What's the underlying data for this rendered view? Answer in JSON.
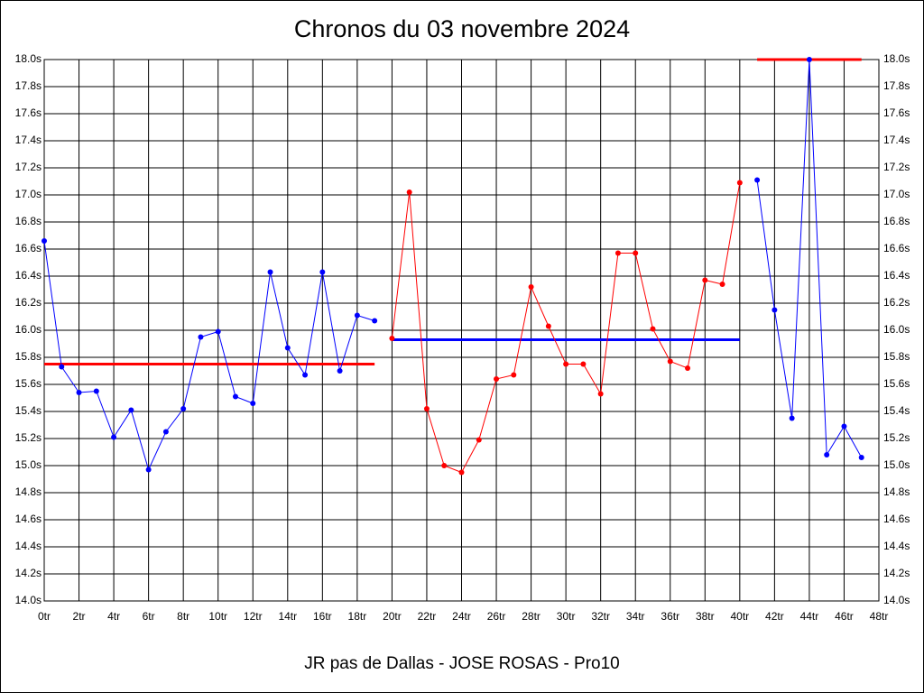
{
  "chart_data": {
    "type": "line",
    "title": "Chronos du 03 novembre 2024",
    "x_label": "JR pas de Dallas - JOSE ROSAS - Pro10",
    "xlim": [
      0,
      48
    ],
    "xticks": [
      {
        "value": 0,
        "label": "0tr"
      },
      {
        "value": 2,
        "label": "2tr"
      },
      {
        "value": 4,
        "label": "4tr"
      },
      {
        "value": 6,
        "label": "6tr"
      },
      {
        "value": 8,
        "label": "8tr"
      },
      {
        "value": 10,
        "label": "10tr"
      },
      {
        "value": 12,
        "label": "12tr"
      },
      {
        "value": 14,
        "label": "14tr"
      },
      {
        "value": 16,
        "label": "16tr"
      },
      {
        "value": 18,
        "label": "18tr"
      },
      {
        "value": 20,
        "label": "20tr"
      },
      {
        "value": 22,
        "label": "22tr"
      },
      {
        "value": 24,
        "label": "24tr"
      },
      {
        "value": 26,
        "label": "26tr"
      },
      {
        "value": 28,
        "label": "28tr"
      },
      {
        "value": 30,
        "label": "30tr"
      },
      {
        "value": 32,
        "label": "32tr"
      },
      {
        "value": 34,
        "label": "34tr"
      },
      {
        "value": 36,
        "label": "36tr"
      },
      {
        "value": 38,
        "label": "38tr"
      },
      {
        "value": 40,
        "label": "40tr"
      },
      {
        "value": 42,
        "label": "42tr"
      },
      {
        "value": 44,
        "label": "44tr"
      },
      {
        "value": 46,
        "label": "46tr"
      },
      {
        "value": 48,
        "label": "48tr"
      }
    ],
    "ylim": [
      14.0,
      18.0
    ],
    "yticks": [
      {
        "value": 14.0,
        "label": "14.0s"
      },
      {
        "value": 14.2,
        "label": "14.2s"
      },
      {
        "value": 14.4,
        "label": "14.4s"
      },
      {
        "value": 14.6,
        "label": "14.6s"
      },
      {
        "value": 14.8,
        "label": "14.8s"
      },
      {
        "value": 15.0,
        "label": "15.0s"
      },
      {
        "value": 15.2,
        "label": "15.2s"
      },
      {
        "value": 15.4,
        "label": "15.4s"
      },
      {
        "value": 15.6,
        "label": "15.6s"
      },
      {
        "value": 15.8,
        "label": "15.8s"
      },
      {
        "value": 16.0,
        "label": "16.0s"
      },
      {
        "value": 16.2,
        "label": "16.2s"
      },
      {
        "value": 16.4,
        "label": "16.4s"
      },
      {
        "value": 16.6,
        "label": "16.6s"
      },
      {
        "value": 16.8,
        "label": "16.8s"
      },
      {
        "value": 17.0,
        "label": "17.0s"
      },
      {
        "value": 17.2,
        "label": "17.2s"
      },
      {
        "value": 17.4,
        "label": "17.4s"
      },
      {
        "value": 17.6,
        "label": "17.6s"
      },
      {
        "value": 17.8,
        "label": "17.8s"
      },
      {
        "value": 18.0,
        "label": "18.0s"
      }
    ],
    "grid": true,
    "right_axis_labels": true,
    "series": [
      {
        "color": "#0000ff",
        "x": [
          0,
          1,
          2,
          3,
          4,
          5,
          6,
          7,
          8,
          9,
          10,
          11,
          12,
          13,
          14,
          15,
          16,
          17,
          18,
          19
        ],
        "values": [
          16.66,
          15.73,
          15.54,
          15.55,
          15.21,
          15.41,
          14.97,
          15.25,
          15.42,
          15.95,
          15.99,
          15.51,
          15.46,
          16.43,
          15.87,
          15.67,
          16.43,
          15.7,
          16.11,
          16.07
        ]
      },
      {
        "color": "#ff0000",
        "x": [
          20,
          21,
          22,
          23,
          24,
          25,
          26,
          27,
          28,
          29,
          30,
          31,
          32,
          33,
          34,
          35,
          36,
          37,
          38,
          39,
          40
        ],
        "values": [
          15.94,
          17.02,
          15.42,
          15.0,
          14.95,
          15.19,
          15.64,
          15.67,
          16.32,
          16.03,
          15.75,
          15.75,
          15.53,
          16.57,
          16.57,
          16.01,
          15.77,
          15.72,
          16.37,
          16.34,
          17.09
        ]
      },
      {
        "color": "#0000ff",
        "x": [
          41,
          42,
          43,
          44,
          45,
          46,
          47
        ],
        "values": [
          17.11,
          16.15,
          15.35,
          18.0,
          15.08,
          15.29,
          15.06
        ]
      }
    ],
    "reference_lines": [
      {
        "color": "#ff0000",
        "x": [
          0,
          19
        ],
        "value": 15.75
      },
      {
        "color": "#0000ff",
        "x": [
          20,
          40
        ],
        "value": 15.93
      },
      {
        "color": "#ff0000",
        "x": [
          41,
          47
        ],
        "value": 18.0
      }
    ]
  }
}
